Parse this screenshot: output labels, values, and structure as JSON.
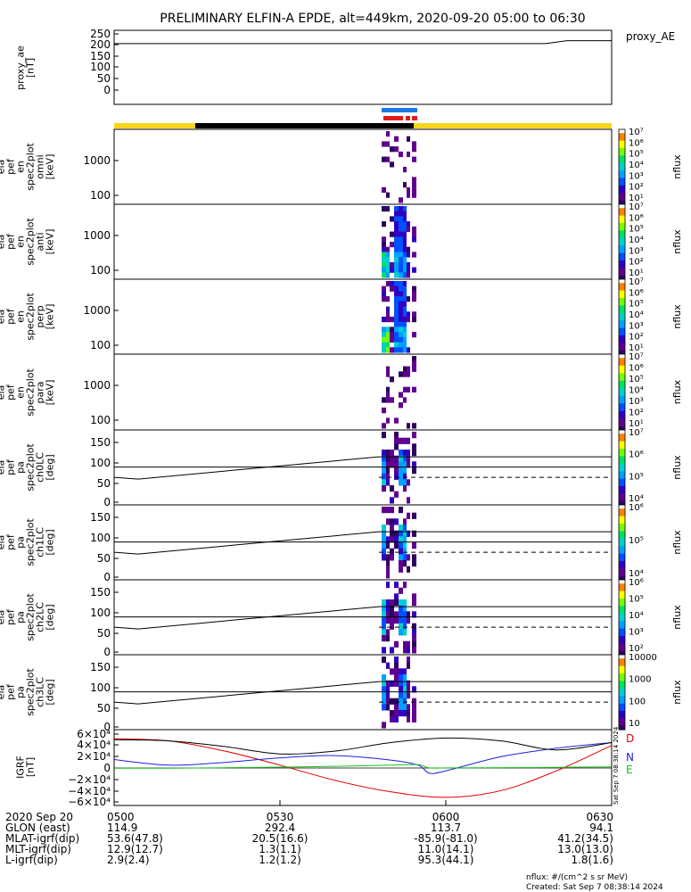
{
  "title": "PRELIMINARY ELFIN-A EPDE, alt=449km, 2020-09-20 05:00 to 06:30",
  "colors": {
    "bar_yellow": "#f7d61c",
    "bar_black": "#000000",
    "bar_blue": "#1f78e8",
    "bar_red": "#e01b1b",
    "D": "#e00000",
    "N": "#1e1ee0",
    "E": "#18c018"
  },
  "chart_data": [
    {
      "type": "line",
      "ylabel": [
        "proxy_ae",
        "[nT]"
      ],
      "yticks": [
        "250",
        "200",
        "150",
        "100",
        "50",
        "0"
      ],
      "ylim": [
        0,
        270
      ],
      "legend": "proxy_AE",
      "series": [
        {
          "name": "proxy_AE",
          "x": [
            0,
            78,
            82,
            90
          ],
          "values": [
            214,
            214,
            225,
            225
          ]
        }
      ]
    },
    {
      "type": "heatmap",
      "ylabel": [
        "ela",
        "pef",
        "en",
        "spec2plot",
        "omni",
        "[keV]"
      ],
      "yticks": [
        "1000",
        "100"
      ],
      "colorbar": {
        "label": "nflux",
        "ticks": [
          "10⁷",
          "10⁶",
          "10⁵",
          "10⁴",
          "10³",
          "10²",
          "10¹"
        ]
      }
    },
    {
      "type": "heatmap",
      "ylabel": [
        "ela",
        "pef",
        "en",
        "spec2plot",
        "anti",
        "[keV]"
      ],
      "yticks": [
        "1000",
        "100"
      ],
      "colorbar": {
        "label": "nflux",
        "ticks": [
          "10⁷",
          "10⁶",
          "10⁵",
          "10⁴",
          "10³",
          "10²",
          "10¹"
        ]
      }
    },
    {
      "type": "heatmap",
      "ylabel": [
        "ela",
        "pef",
        "en",
        "spec2plot",
        "perp",
        "[keV]"
      ],
      "yticks": [
        "1000",
        "100"
      ],
      "colorbar": {
        "label": "nflux",
        "ticks": [
          "10⁷",
          "10⁶",
          "10⁵",
          "10⁴",
          "10³",
          "10²",
          "10¹"
        ]
      }
    },
    {
      "type": "heatmap",
      "ylabel": [
        "ela",
        "pef",
        "en",
        "spec2plot",
        "para",
        "[keV]"
      ],
      "yticks": [
        "1000",
        "100"
      ],
      "colorbar": {
        "label": "nflux",
        "ticks": [
          "10⁷",
          "10⁶",
          "10⁵",
          "10⁴",
          "10³",
          "10²",
          "10¹"
        ]
      }
    },
    {
      "type": "heatmap",
      "ylabel": [
        "ela",
        "pef",
        "pa",
        "spec2plot",
        "ch0LC",
        "[deg]"
      ],
      "yticks": [
        "150",
        "100",
        "50",
        "0"
      ],
      "colorbar": {
        "label": "nflux",
        "ticks": [
          "10⁷",
          "10⁶",
          "10⁵",
          "10⁴"
        ]
      }
    },
    {
      "type": "heatmap",
      "ylabel": [
        "ela",
        "pef",
        "pa",
        "spec2plot",
        "ch1LC",
        "[deg]"
      ],
      "yticks": [
        "150",
        "100",
        "50",
        "0"
      ],
      "colorbar": {
        "label": "nflux",
        "ticks": [
          "10⁶",
          "10⁵",
          "10⁴"
        ]
      }
    },
    {
      "type": "heatmap",
      "ylabel": [
        "ela",
        "pef",
        "pa",
        "spec2plot",
        "ch2LC",
        "[deg]"
      ],
      "yticks": [
        "150",
        "100",
        "50",
        "0"
      ],
      "colorbar": {
        "label": "nflux",
        "ticks": [
          "10⁶",
          "10⁵",
          "10⁴",
          "10³",
          "10²"
        ]
      }
    },
    {
      "type": "heatmap",
      "ylabel": [
        "ela",
        "pef",
        "pa",
        "spec2plot",
        "ch3LC",
        "[deg]"
      ],
      "yticks": [
        "150",
        "100",
        "50",
        "0"
      ],
      "colorbar": {
        "label": "nflux",
        "ticks": [
          "10000",
          "1000",
          "100",
          "10"
        ]
      }
    },
    {
      "type": "line",
      "ylabel": [
        "IGRF",
        "[nT]"
      ],
      "yticks": [
        "6×10⁴",
        "4×10⁴",
        "2×10⁴",
        "0",
        "−2×10⁴",
        "−4×10⁴",
        "−6×10⁴"
      ],
      "ylim": [
        -65000,
        65000
      ],
      "series": [
        {
          "name": "D",
          "x": [
            0,
            10,
            20,
            30,
            40,
            50,
            60,
            70,
            80,
            90
          ],
          "values": [
            52000,
            48000,
            30000,
            5000,
            -22000,
            -42000,
            -52000,
            -40000,
            -5000,
            40000
          ]
        },
        {
          "name": "N",
          "x": [
            0,
            10,
            20,
            30,
            40,
            50,
            55,
            57,
            60,
            70,
            80,
            90
          ],
          "values": [
            15000,
            5000,
            10000,
            18000,
            22000,
            14000,
            5000,
            -9000,
            -5000,
            20000,
            35000,
            45000
          ]
        },
        {
          "name": "E",
          "x": [
            0,
            10,
            20,
            30,
            40,
            50,
            55,
            57,
            60,
            70,
            80,
            90
          ],
          "values": [
            -500,
            -300,
            500,
            1500,
            3000,
            5000,
            6000,
            200,
            200,
            600,
            1200,
            2000
          ]
        },
        {
          "name": "",
          "x": [
            0,
            10,
            20,
            30,
            40,
            50,
            60,
            70,
            80,
            90
          ],
          "values": [
            50000,
            48000,
            38000,
            25000,
            30000,
            45000,
            53000,
            48000,
            32000,
            45000
          ]
        }
      ]
    }
  ],
  "orbit_table": {
    "rows": [
      {
        "label": "2020 Sep 20",
        "values": [
          "0500",
          "0530",
          "0600",
          "0630"
        ]
      },
      {
        "label": "GLON (east)",
        "values": [
          "114.9",
          "292.4",
          "113.7",
          "94.1"
        ]
      },
      {
        "label": "MLAT-igrf(dip)",
        "values": [
          "53.6(47.8)",
          "20.5(16.6)",
          "-85.9(-81.0)",
          "41.2(34.5)"
        ]
      },
      {
        "label": "MLT-igrf(dip)",
        "values": [
          "12.9(12.7)",
          "1.3(1.1)",
          "11.0(14.1)",
          "13.0(13.0)"
        ]
      },
      {
        "label": "L-igrf(dip)",
        "values": [
          "2.9(2.4)",
          "1.2(1.2)",
          "95.3(44.1)",
          "1.8(1.6)"
        ]
      }
    ]
  },
  "footer": {
    "units": "nflux: #/(cm^2 s sr MeV)",
    "created": "Created: Sat Sep  7 08:38:14 2024",
    "side_stamp": "Sat Sep  7 08:38:14 2024"
  }
}
